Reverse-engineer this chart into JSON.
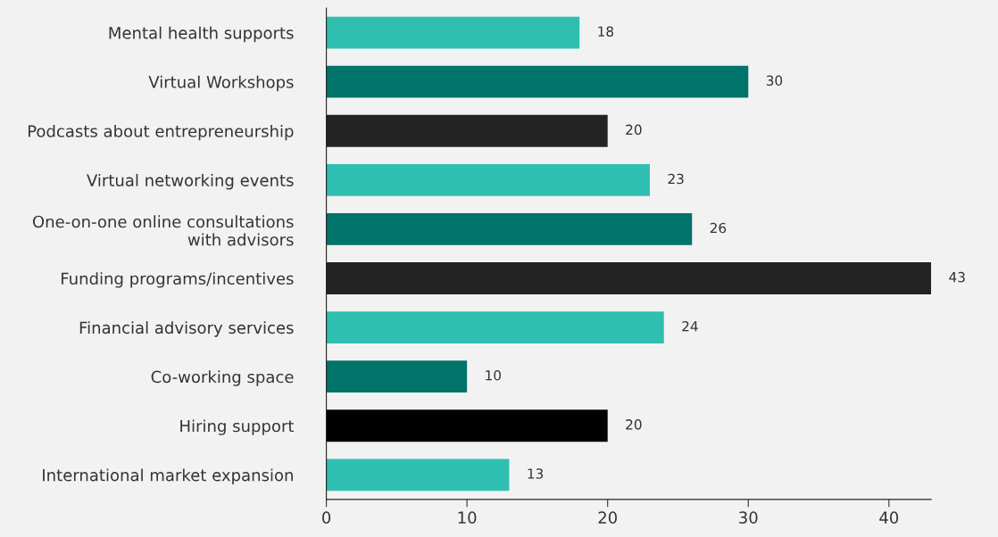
{
  "chart_data": {
    "type": "bar",
    "orientation": "horizontal",
    "categories": [
      "Mental health supports",
      "Virtual Workshops",
      "Podcasts about entrepreneurship",
      "Virtual networking events",
      "One-on-one online consultations\nwith advisors",
      "Funding programs/incentives",
      "Financial advisory services",
      "Co-working space",
      "Hiring support",
      "International market expansion"
    ],
    "values": [
      18,
      30,
      20,
      23,
      26,
      43,
      24,
      10,
      20,
      13
    ],
    "colors": [
      "#2ebfb0",
      "#00736a",
      "#232323",
      "#2ebfb0",
      "#00736a",
      "#232323",
      "#2ebfb0",
      "#00736a",
      "#000000",
      "#2ebfb0"
    ],
    "xlim": [
      0,
      43
    ],
    "xticks": [
      0,
      10,
      20,
      30,
      40
    ],
    "grid": false,
    "data_labels": true
  }
}
